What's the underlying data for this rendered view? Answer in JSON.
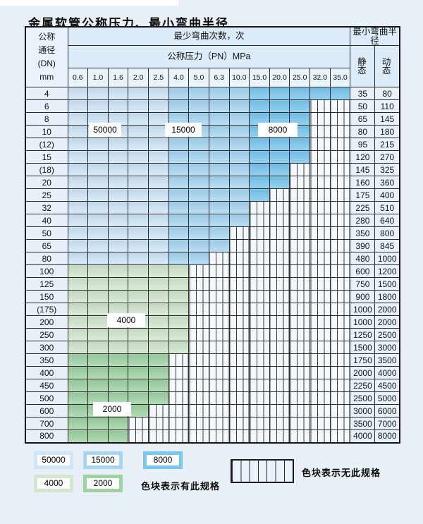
{
  "title": "金属软管公称压力、最小弯曲半径",
  "table": {
    "header": {
      "dn_lines": [
        "公称",
        "通径",
        "(DN)",
        "mm"
      ],
      "bend_cycles": "最少弯曲次数，次",
      "pressure": "公称压力（PN）MPa",
      "min_radius": "最小弯曲半径",
      "static": "静 态",
      "dynamic": "动 态",
      "pressure_ticks": [
        "0.6",
        "1.0",
        "1.6",
        "2.0",
        "2.5",
        "4.0",
        "5.0",
        "6.3",
        "10.0",
        "15.0",
        "20.0",
        "25.0",
        "32.0",
        "35.0"
      ]
    },
    "rows": [
      {
        "dn": "4",
        "band": "blue",
        "spec_through": "35.0",
        "static": "35",
        "dynamic": "80"
      },
      {
        "dn": "6",
        "band": "blue",
        "spec_through": "25.0",
        "static": "50",
        "dynamic": "110"
      },
      {
        "dn": "8",
        "band": "blue",
        "spec_through": "25.0",
        "static": "65",
        "dynamic": "145"
      },
      {
        "dn": "10",
        "band": "blue",
        "spec_through": "25.0",
        "static": "80",
        "dynamic": "180"
      },
      {
        "dn": "(12)",
        "band": "blue",
        "spec_through": "25.0",
        "static": "95",
        "dynamic": "215"
      },
      {
        "dn": "15",
        "band": "blue",
        "spec_through": "25.0",
        "static": "120",
        "dynamic": "270"
      },
      {
        "dn": "(18)",
        "band": "blue",
        "spec_through": "20.0",
        "static": "145",
        "dynamic": "325"
      },
      {
        "dn": "20",
        "band": "blue",
        "spec_through": "20.0",
        "static": "160",
        "dynamic": "360"
      },
      {
        "dn": "25",
        "band": "blue",
        "spec_through": "15.0",
        "static": "175",
        "dynamic": "400"
      },
      {
        "dn": "32",
        "band": "blue",
        "spec_through": "10.0",
        "static": "225",
        "dynamic": "510"
      },
      {
        "dn": "40",
        "band": "blue",
        "spec_through": "10.0",
        "static": "280",
        "dynamic": "640"
      },
      {
        "dn": "50",
        "band": "blue",
        "spec_through": "6.3",
        "static": "350",
        "dynamic": "800"
      },
      {
        "dn": "65",
        "band": "blue",
        "spec_through": "6.3",
        "static": "390",
        "dynamic": "845"
      },
      {
        "dn": "80",
        "band": "blue",
        "spec_through": "5.0",
        "static": "480",
        "dynamic": "1000"
      },
      {
        "dn": "100",
        "band": "green-4000",
        "spec_through": "4.0",
        "static": "600",
        "dynamic": "1200"
      },
      {
        "dn": "125",
        "band": "green-4000",
        "spec_through": "4.0",
        "static": "750",
        "dynamic": "1500"
      },
      {
        "dn": "150",
        "band": "green-4000",
        "spec_through": "4.0",
        "static": "900",
        "dynamic": "1800"
      },
      {
        "dn": "(175)",
        "band": "green-4000",
        "spec_through": "4.0",
        "static": "1000",
        "dynamic": "2000"
      },
      {
        "dn": "200",
        "band": "green-4000",
        "spec_through": "4.0",
        "static": "1000",
        "dynamic": "2000"
      },
      {
        "dn": "250",
        "band": "green-4000",
        "spec_through": "4.0",
        "static": "1250",
        "dynamic": "2500"
      },
      {
        "dn": "300",
        "band": "green-4000",
        "spec_through": "4.0",
        "static": "1500",
        "dynamic": "3000"
      },
      {
        "dn": "350",
        "band": "green-2000",
        "spec_through": "2.5",
        "static": "1750",
        "dynamic": "3500"
      },
      {
        "dn": "400",
        "band": "green-2000",
        "spec_through": "2.5",
        "static": "2000",
        "dynamic": "4000"
      },
      {
        "dn": "450",
        "band": "green-2000",
        "spec_through": "2.5",
        "static": "2250",
        "dynamic": "4500"
      },
      {
        "dn": "500",
        "band": "green-2000",
        "spec_through": "2.5",
        "static": "2500",
        "dynamic": "5000"
      },
      {
        "dn": "600",
        "band": "green-2000",
        "spec_through": "2.0",
        "static": "3000",
        "dynamic": "6000"
      },
      {
        "dn": "700",
        "band": "green-2000",
        "spec_through": "1.6",
        "static": "3500",
        "dynamic": "7000"
      },
      {
        "dn": "800",
        "band": "green-2000",
        "spec_through": "1.6",
        "static": "4000",
        "dynamic": "8000"
      }
    ]
  },
  "overlays": [
    {
      "text": "50000"
    },
    {
      "text": "15000"
    },
    {
      "text": "8000"
    },
    {
      "text": "4000"
    },
    {
      "text": "2000"
    }
  ],
  "legend": {
    "swatches": [
      {
        "label": "50000",
        "color": "#cde5f7"
      },
      {
        "label": "15000",
        "color": "#a6d6f2"
      },
      {
        "label": "8000",
        "color": "#79c6ee"
      },
      {
        "label": "4000",
        "color": "#d0e6ce"
      },
      {
        "label": "2000",
        "color": "#9ed2a2"
      }
    ],
    "has_spec_text": "色块表示有此规格",
    "no_spec_text": "色块表示无此规格"
  },
  "colors": {
    "blue_50000": "#cde5f7",
    "blue_15000": "#a6d6f2",
    "blue_8000": "#79c6ee",
    "green_4000": "#d0e6ce",
    "green_2000": "#9ed2a2"
  }
}
